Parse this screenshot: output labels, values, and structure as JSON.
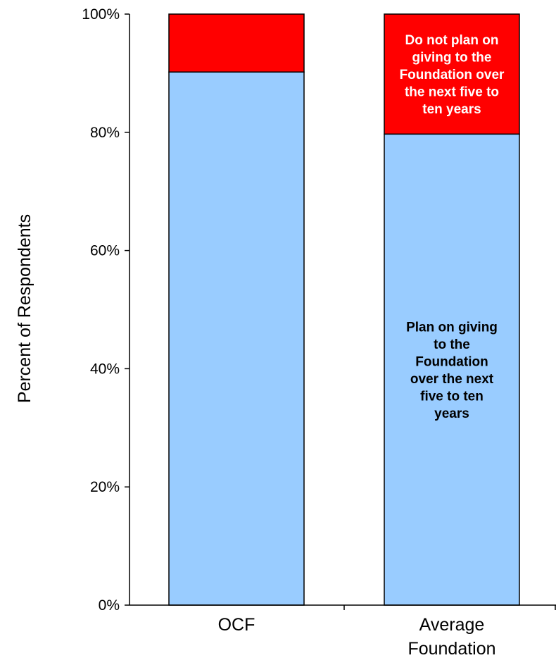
{
  "chart_data": {
    "type": "bar",
    "stacked": true,
    "percent_stacked": true,
    "categories": [
      "OCF",
      "Average Foundation"
    ],
    "category_label_lines": [
      [
        "OCF"
      ],
      [
        "Average",
        "Foundation"
      ]
    ],
    "series": [
      {
        "key": "plan",
        "values": [
          90.2,
          79.7
        ],
        "color": "#99CCFF"
      },
      {
        "key": "no_plan",
        "values": [
          9.8,
          20.3
        ],
        "color": "#FF0000"
      }
    ],
    "ylabel": "Percent of Respondents",
    "ylim": [
      0,
      100
    ],
    "y_ticks": [
      0,
      20,
      40,
      60,
      80,
      100
    ],
    "y_tick_labels": [
      "0%",
      "20%",
      "40%",
      "60%",
      "80%",
      "100%"
    ],
    "grid": false,
    "legend": "none",
    "annotations": [
      {
        "category_index": 1,
        "series_key": "plan",
        "lines": [
          "Plan on giving",
          "to the",
          "Foundation",
          "over the next",
          "five to ten",
          "years"
        ],
        "color": "#000000"
      },
      {
        "category_index": 1,
        "series_key": "no_plan",
        "lines": [
          "Do not plan on",
          "giving to the",
          "Foundation over",
          "the next five to",
          "ten years"
        ],
        "color": "#FFFFFF"
      }
    ]
  }
}
